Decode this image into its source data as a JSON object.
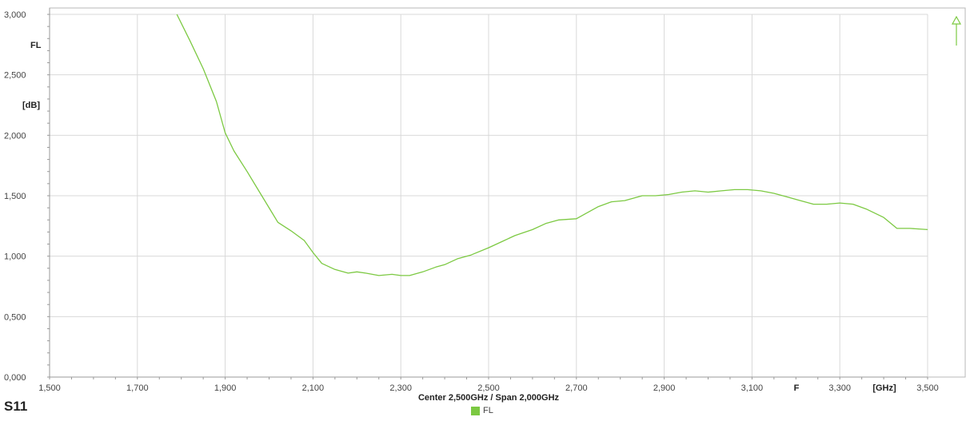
{
  "chart_data": {
    "type": "line",
    "trace_label": "S11",
    "ylabel": "FL",
    "yunit": "[dB]",
    "xlabel": "F",
    "xunit": "[GHz]",
    "footer": "Center 2,500GHz / Span 2,000GHz",
    "xlim": [
      1.5,
      3.5
    ],
    "ylim": [
      0.0,
      3.0
    ],
    "x_ticks": [
      1.5,
      1.7,
      1.9,
      2.1,
      2.3,
      2.5,
      2.7,
      2.9,
      3.1,
      3.3,
      3.5
    ],
    "x_tick_labels": [
      "1,500",
      "1,700",
      "1,900",
      "2,100",
      "2,300",
      "2,500",
      "2,700",
      "2,900",
      "3,100",
      "3,300",
      "3,500"
    ],
    "y_ticks": [
      0.0,
      0.5,
      1.0,
      1.5,
      2.0,
      2.5,
      3.0
    ],
    "y_tick_labels": [
      "0,000",
      "0,500",
      "1,000",
      "1,500",
      "2,000",
      "2,500",
      "3,000"
    ],
    "grid": true,
    "legend_position": "bottom-center",
    "series": [
      {
        "name": "FL",
        "color": "#7cc942",
        "x": [
          1.79,
          1.82,
          1.85,
          1.88,
          1.9,
          1.92,
          1.95,
          1.98,
          2.0,
          2.02,
          2.05,
          2.08,
          2.1,
          2.12,
          2.15,
          2.18,
          2.2,
          2.22,
          2.25,
          2.28,
          2.3,
          2.32,
          2.35,
          2.38,
          2.4,
          2.43,
          2.46,
          2.5,
          2.53,
          2.56,
          2.6,
          2.63,
          2.66,
          2.7,
          2.72,
          2.75,
          2.78,
          2.81,
          2.85,
          2.88,
          2.91,
          2.94,
          2.97,
          3.0,
          3.03,
          3.06,
          3.09,
          3.12,
          3.15,
          3.18,
          3.21,
          3.24,
          3.27,
          3.3,
          3.33,
          3.36,
          3.4,
          3.43,
          3.46,
          3.5
        ],
        "y": [
          3.0,
          2.78,
          2.55,
          2.28,
          2.02,
          1.87,
          1.7,
          1.52,
          1.4,
          1.28,
          1.21,
          1.13,
          1.03,
          0.94,
          0.89,
          0.86,
          0.87,
          0.86,
          0.84,
          0.85,
          0.84,
          0.84,
          0.87,
          0.91,
          0.93,
          0.98,
          1.01,
          1.07,
          1.12,
          1.17,
          1.22,
          1.27,
          1.3,
          1.31,
          1.35,
          1.41,
          1.45,
          1.46,
          1.5,
          1.5,
          1.51,
          1.53,
          1.54,
          1.53,
          1.54,
          1.55,
          1.55,
          1.54,
          1.52,
          1.49,
          1.46,
          1.43,
          1.43,
          1.44,
          1.43,
          1.39,
          1.32,
          1.23,
          1.23,
          1.22
        ]
      }
    ]
  },
  "marker": {
    "icon": "marker-up-arrow-icon",
    "color": "#7cc942"
  }
}
